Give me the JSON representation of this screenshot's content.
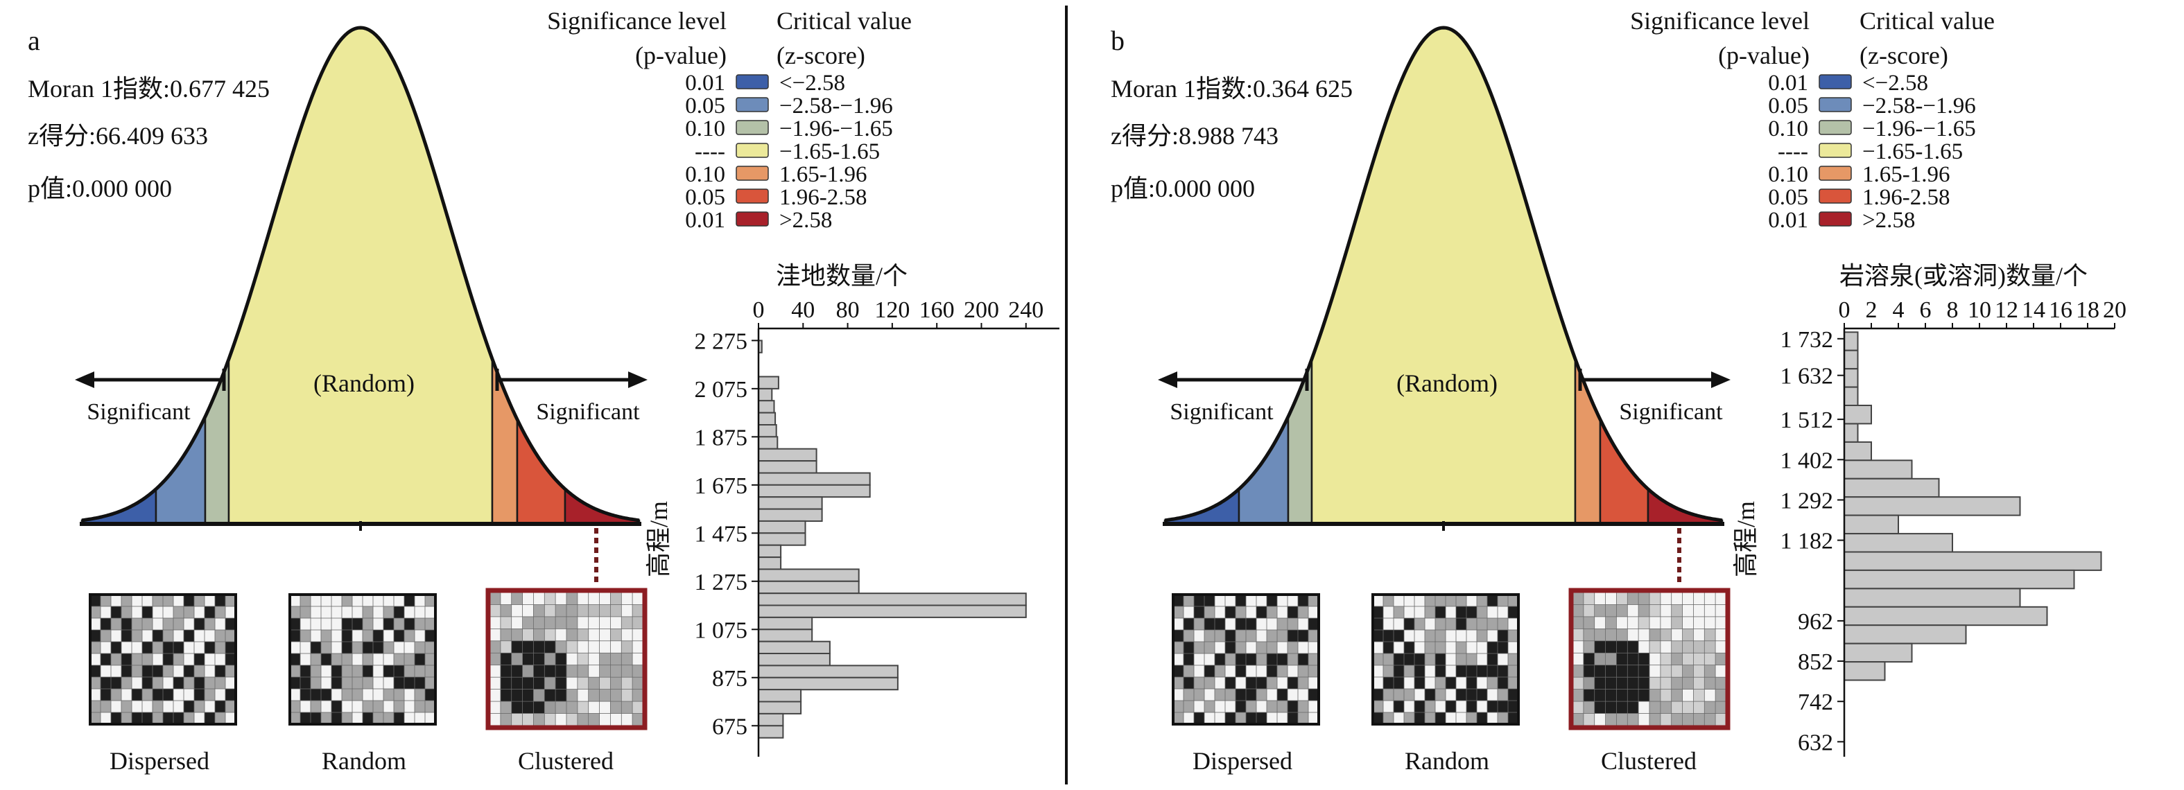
{
  "panels": [
    {
      "letter": "a",
      "stats": [
        "Moran 1指数:0.677 425",
        "z得分:66.409 633",
        "p值:0.000 000"
      ],
      "sig_header": [
        "Significance level",
        "(p-value)"
      ],
      "crit_header": [
        "Critical value",
        "(z-score)"
      ],
      "legend": [
        {
          "p": "0.01",
          "z": "<−2.58",
          "color": "#3d5fa8"
        },
        {
          "p": "0.05",
          "z": "−2.58-−1.96",
          "color": "#6d8cba"
        },
        {
          "p": "0.10",
          "z": "−1.96-−1.65",
          "color": "#b4c1a8"
        },
        {
          "p": "----",
          "z": "−1.65-1.65",
          "color": "#ece99a"
        },
        {
          "p": "0.10",
          "z": "1.65-1.96",
          "color": "#e69866"
        },
        {
          "p": "0.05",
          "z": "1.96-2.58",
          "color": "#d9553b"
        },
        {
          "p": "0.01",
          "z": ">2.58",
          "color": "#a8212a"
        }
      ],
      "curve_labels": {
        "random": "(Random)",
        "sig_left": "Significant",
        "sig_right": "Significant"
      },
      "pattern_labels": [
        "Dispersed",
        "Random",
        "Clustered"
      ]
    },
    {
      "letter": "b",
      "stats": [
        "Moran 1指数:0.364 625",
        "z得分:8.988 743",
        "p值:0.000 000"
      ],
      "sig_header": [
        "Significance level",
        "(p-value)"
      ],
      "crit_header": [
        "Critical value",
        "(z-score)"
      ],
      "legend": [
        {
          "p": "0.01",
          "z": "<−2.58",
          "color": "#3d5fa8"
        },
        {
          "p": "0.05",
          "z": "−2.58-−1.96",
          "color": "#6d8cba"
        },
        {
          "p": "0.10",
          "z": "−1.96-−1.65",
          "color": "#b4c1a8"
        },
        {
          "p": "----",
          "z": "−1.65-1.65",
          "color": "#ece99a"
        },
        {
          "p": "0.10",
          "z": "1.65-1.96",
          "color": "#e69866"
        },
        {
          "p": "0.05",
          "z": "1.96-2.58",
          "color": "#d9553b"
        },
        {
          "p": "0.01",
          "z": ">2.58",
          "color": "#a8212a"
        }
      ],
      "curve_labels": {
        "random": "(Random)",
        "sig_left": "Significant",
        "sig_right": "Significant"
      },
      "pattern_labels": [
        "Dispersed",
        "Random",
        "Clustered"
      ]
    }
  ],
  "chart_data": [
    {
      "type": "bar",
      "orientation": "horizontal",
      "title": "洼地数量/个",
      "xlabel": "洼地数量/个",
      "ylabel": "高程/m",
      "xlim": [
        0,
        270
      ],
      "x_ticks": [
        "0",
        "40",
        "80",
        "120",
        "160",
        "200",
        "240"
      ],
      "y_ticks": [
        "2 275",
        "2 075",
        "1 875",
        "1 675",
        "1 475",
        "1 275",
        "1 075",
        "875",
        "675"
      ],
      "ylim": [
        575,
        2325
      ],
      "bar_color": "#c8c8c8",
      "bins": [
        {
          "y0": 2225,
          "y1": 2275,
          "value": 3
        },
        {
          "y0": 2175,
          "y1": 2225,
          "value": 0
        },
        {
          "y0": 2125,
          "y1": 2175,
          "value": 0
        },
        {
          "y0": 2075,
          "y1": 2125,
          "value": 18
        },
        {
          "y0": 2025,
          "y1": 2075,
          "value": 12
        },
        {
          "y0": 1975,
          "y1": 2025,
          "value": 14
        },
        {
          "y0": 1925,
          "y1": 1975,
          "value": 15
        },
        {
          "y0": 1875,
          "y1": 1925,
          "value": 16
        },
        {
          "y0": 1825,
          "y1": 1875,
          "value": 17
        },
        {
          "y0": 1775,
          "y1": 1825,
          "value": 52
        },
        {
          "y0": 1725,
          "y1": 1775,
          "value": 52
        },
        {
          "y0": 1675,
          "y1": 1725,
          "value": 100
        },
        {
          "y0": 1625,
          "y1": 1675,
          "value": 100
        },
        {
          "y0": 1575,
          "y1": 1625,
          "value": 57
        },
        {
          "y0": 1525,
          "y1": 1575,
          "value": 57
        },
        {
          "y0": 1475,
          "y1": 1525,
          "value": 42
        },
        {
          "y0": 1425,
          "y1": 1475,
          "value": 42
        },
        {
          "y0": 1375,
          "y1": 1425,
          "value": 20
        },
        {
          "y0": 1325,
          "y1": 1375,
          "value": 20
        },
        {
          "y0": 1275,
          "y1": 1325,
          "value": 90
        },
        {
          "y0": 1225,
          "y1": 1275,
          "value": 90
        },
        {
          "y0": 1175,
          "y1": 1225,
          "value": 240
        },
        {
          "y0": 1125,
          "y1": 1175,
          "value": 240
        },
        {
          "y0": 1075,
          "y1": 1125,
          "value": 48
        },
        {
          "y0": 1025,
          "y1": 1075,
          "value": 48
        },
        {
          "y0": 975,
          "y1": 1025,
          "value": 64
        },
        {
          "y0": 925,
          "y1": 975,
          "value": 64
        },
        {
          "y0": 875,
          "y1": 925,
          "value": 125
        },
        {
          "y0": 825,
          "y1": 875,
          "value": 125
        },
        {
          "y0": 775,
          "y1": 825,
          "value": 38
        },
        {
          "y0": 725,
          "y1": 775,
          "value": 38
        },
        {
          "y0": 675,
          "y1": 725,
          "value": 22
        },
        {
          "y0": 625,
          "y1": 675,
          "value": 22
        }
      ]
    },
    {
      "type": "bar",
      "orientation": "horizontal",
      "title": "岩溶泉(或溶洞)数量/个",
      "xlabel": "岩溶泉(或溶洞)数量/个",
      "ylabel": "高程/m",
      "xlim": [
        0,
        20
      ],
      "x_ticks": [
        "0",
        "2",
        "4",
        "6",
        "8",
        "10",
        "12",
        "14",
        "16",
        "18",
        "20"
      ],
      "y_ticks": [
        "1 732",
        "1 632",
        "1 512",
        "1 402",
        "1 292",
        "1 182",
        "962",
        "852",
        "742",
        "632"
      ],
      "ylim": [
        610,
        1760
      ],
      "bar_color": "#c8c8c8",
      "bins": [
        {
          "y0": 1700,
          "y1": 1750,
          "value": 1
        },
        {
          "y0": 1650,
          "y1": 1700,
          "value": 1
        },
        {
          "y0": 1600,
          "y1": 1650,
          "value": 1
        },
        {
          "y0": 1550,
          "y1": 1600,
          "value": 1
        },
        {
          "y0": 1500,
          "y1": 1550,
          "value": 2
        },
        {
          "y0": 1450,
          "y1": 1500,
          "value": 1
        },
        {
          "y0": 1400,
          "y1": 1450,
          "value": 2
        },
        {
          "y0": 1350,
          "y1": 1400,
          "value": 5
        },
        {
          "y0": 1300,
          "y1": 1350,
          "value": 7
        },
        {
          "y0": 1250,
          "y1": 1300,
          "value": 13
        },
        {
          "y0": 1200,
          "y1": 1250,
          "value": 4
        },
        {
          "y0": 1150,
          "y1": 1200,
          "value": 8
        },
        {
          "y0": 1100,
          "y1": 1150,
          "value": 19
        },
        {
          "y0": 1050,
          "y1": 1100,
          "value": 17
        },
        {
          "y0": 1000,
          "y1": 1050,
          "value": 13
        },
        {
          "y0": 950,
          "y1": 1000,
          "value": 15
        },
        {
          "y0": 900,
          "y1": 950,
          "value": 9
        },
        {
          "y0": 850,
          "y1": 900,
          "value": 5
        },
        {
          "y0": 800,
          "y1": 850,
          "value": 3
        },
        {
          "y0": 750,
          "y1": 800,
          "value": 0
        }
      ]
    }
  ]
}
